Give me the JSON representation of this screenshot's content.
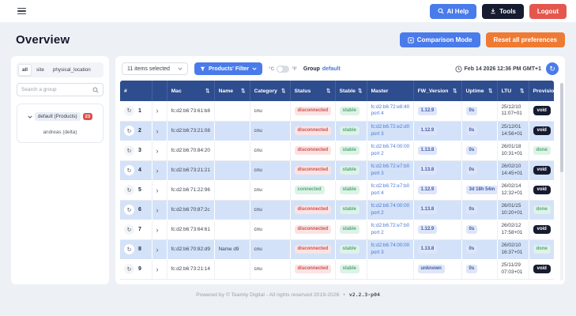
{
  "topbar": {
    "ai_help": "AI Help",
    "tools": "Tools",
    "logout": "Logout"
  },
  "header": {
    "title": "Overview",
    "comparison_mode": "Comparison Mode",
    "reset_preferences": "Reset all preferences"
  },
  "sidebar": {
    "tabs": [
      "all",
      "site",
      "physical_location"
    ],
    "search_placeholder": "Search a group",
    "group_label": "default (Products)",
    "group_badge": "23",
    "group_child": "andreas (delta)"
  },
  "toolbar": {
    "items_selected": "11 items selected",
    "filter_label": "Products' Filter",
    "celsius": "°C",
    "fahrenheit": "°F",
    "group_label": "Group",
    "group_value": "default",
    "timestamp": "Feb 14 2026 12:36 PM GMT+1"
  },
  "table": {
    "headers": [
      {
        "label": "#",
        "sort": false
      },
      {
        "label": "",
        "sort": false
      },
      {
        "label": "Mac",
        "sort": true
      },
      {
        "label": "Name",
        "sort": true
      },
      {
        "label": "Category",
        "sort": true
      },
      {
        "label": "Status",
        "sort": true
      },
      {
        "label": "Stable",
        "sort": true
      },
      {
        "label": "Master",
        "sort": false
      },
      {
        "label": "FW_Version",
        "sort": true
      },
      {
        "label": "Uptime",
        "sort": true
      },
      {
        "label": "LTU",
        "sort": true
      },
      {
        "label": "Provision",
        "sort": false
      }
    ],
    "rows": [
      {
        "num": "1",
        "mac": "fc:d2:b6:73:61:b8",
        "name": "",
        "category": "cnu",
        "status": "disconnected",
        "stable": "stable",
        "master_mac": "fc:d2:b6:72:e8:40",
        "master_port": "port 4",
        "fw": "1.12.9",
        "uptime": "0s",
        "ltu_date": "25/12/10",
        "ltu_time": "11:07+01",
        "provision": "void",
        "selected": false
      },
      {
        "num": "2",
        "mac": "fc:d2:b6:73:21:08",
        "name": "",
        "category": "cnu",
        "status": "disconnected",
        "stable": "stable",
        "master_mac": "fc:d2:b6:72:e2:d0",
        "master_port": "port 3",
        "fw": "1.12.9",
        "uptime": "0s",
        "ltu_date": "25/12/01",
        "ltu_time": "14:56+01",
        "provision": "void",
        "selected": true
      },
      {
        "num": "3",
        "mac": "fc:d2:b6:70:84:20",
        "name": "",
        "category": "cnu",
        "status": "disconnected",
        "stable": "stable",
        "master_mac": "fc:d2:b6:74:00:00",
        "master_port": "port 2",
        "fw": "1.13.8",
        "uptime": "0s",
        "ltu_date": "26/01/18",
        "ltu_time": "10:31+01",
        "provision": "done",
        "selected": false
      },
      {
        "num": "4",
        "mac": "fc:d2:b6:73:21:21",
        "name": "",
        "category": "cnu",
        "status": "disconnected",
        "stable": "stable",
        "master_mac": "fc:d2:b6:72:e7:b0",
        "master_port": "port 3",
        "fw": "1.13.8",
        "uptime": "0s",
        "ltu_date": "26/02/10",
        "ltu_time": "14:45+01",
        "provision": "void",
        "selected": true
      },
      {
        "num": "5",
        "mac": "fc:d2:b6:71:22:96",
        "name": "",
        "category": "cnu",
        "status": "connected",
        "stable": "stable",
        "master_mac": "fc:d2:b6:72:e7:b0",
        "master_port": "port 4",
        "fw": "1.12.9",
        "uptime": "3d 18h 54m",
        "ltu_date": "26/02/14",
        "ltu_time": "12:32+01",
        "provision": "void",
        "selected": false
      },
      {
        "num": "6",
        "mac": "fc:d2:b6:70:87:2c",
        "name": "",
        "category": "cnu",
        "status": "disconnected",
        "stable": "stable",
        "master_mac": "fc:d2:b6:74:00:00",
        "master_port": "port 2",
        "fw": "1.13.8",
        "uptime": "0s",
        "ltu_date": "26/01/15",
        "ltu_time": "10:20+01",
        "provision": "done",
        "selected": true
      },
      {
        "num": "7",
        "mac": "fc:d2:b6:73:64:61",
        "name": "",
        "category": "cnu",
        "status": "disconnected",
        "stable": "stable",
        "master_mac": "fc:d2:b6:72:e7:b0",
        "master_port": "port 2",
        "fw": "1.12.9",
        "uptime": "0s",
        "ltu_date": "26/02/12",
        "ltu_time": "17:58+01",
        "provision": "void",
        "selected": false
      },
      {
        "num": "8",
        "mac": "fc:d2:b6:70:82:d9",
        "name": "Name d9",
        "category": "cnu",
        "status": "disconnected",
        "stable": "stable",
        "master_mac": "fc:d2:b6:74:00:00",
        "master_port": "port 3",
        "fw": "1.13.8",
        "uptime": "0s",
        "ltu_date": "26/02/10",
        "ltu_time": "16:37+01",
        "provision": "done",
        "selected": true
      },
      {
        "num": "9",
        "mac": "fc:d2:b6:73:21:14",
        "name": "",
        "category": "cnu",
        "status": "disconnected",
        "stable": "stable",
        "master_mac": "",
        "master_port": "",
        "fw": "unknown",
        "uptime": "0s",
        "ltu_date": "25/11/29",
        "ltu_time": "07:03+01",
        "provision": "void",
        "selected": false
      }
    ]
  },
  "footer": {
    "copyright": "Powered by © Teamly Digital - All rights reserved 2019-2026",
    "separator": "•",
    "version": "v2.2.3-p04"
  },
  "colors": {
    "accent": "#4a7bea",
    "dark": "#161b30",
    "danger": "#e4574e",
    "orange": "#ee7b33",
    "navy": "#2e4d8e",
    "link": "#4a79d9",
    "badge": "#d9534f",
    "row-selected": "#d3e2f8",
    "status-red-bg": "#fbe3e3",
    "status-red-text": "#cf4f4f",
    "green-bg": "#def2e7",
    "green-text": "#55a87a",
    "lav-bg": "#dee5f9",
    "lav-text": "#3f5ca8"
  }
}
